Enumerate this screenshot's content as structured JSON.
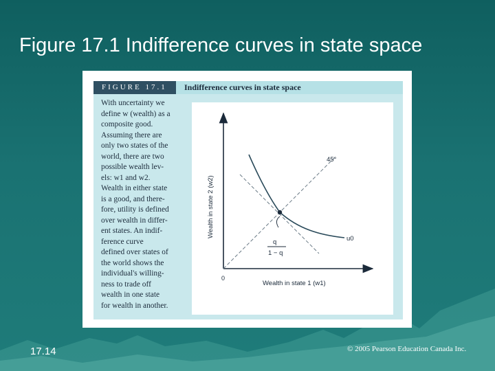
{
  "slide": {
    "title": "Figure 17.1 Indifference curves in state space",
    "number": "17.14",
    "copyright": "© 2005 Pearson Education Canada Inc."
  },
  "figure": {
    "label": "FIGURE 17.1",
    "title": "Indifference curves in state space",
    "caption_lines": [
      "With uncertainty we",
      "define w (wealth) as a",
      "composite good.",
      "Assuming there are",
      "only two states of the",
      "world, there are two",
      "possible wealth lev-",
      "els: w1 and w2.",
      "Wealth in either state",
      "is a good, and there-",
      "fore, utility is defined",
      "over wealth in differ-",
      "ent states. An indif-",
      "ference curve",
      "defined over states of",
      "the world shows the",
      "individual's willing-",
      "ness to trade off",
      "wealth in one state",
      "for wealth in another."
    ],
    "diagram": {
      "x_axis_label": "Wealth in state 1 (w1)",
      "y_axis_label": "Wealth in state 2 (w2)",
      "origin_label": "0",
      "line_label": "45°",
      "curve_label": "u0",
      "slope_numerator": "q",
      "slope_denominator": "1 − q"
    }
  },
  "colors": {
    "background": "#1a7272",
    "header_band": "#b6e1e6",
    "label_box": "#2f4f62",
    "caption_panel": "#c9e8ec",
    "curve": "#2a4a5a"
  }
}
